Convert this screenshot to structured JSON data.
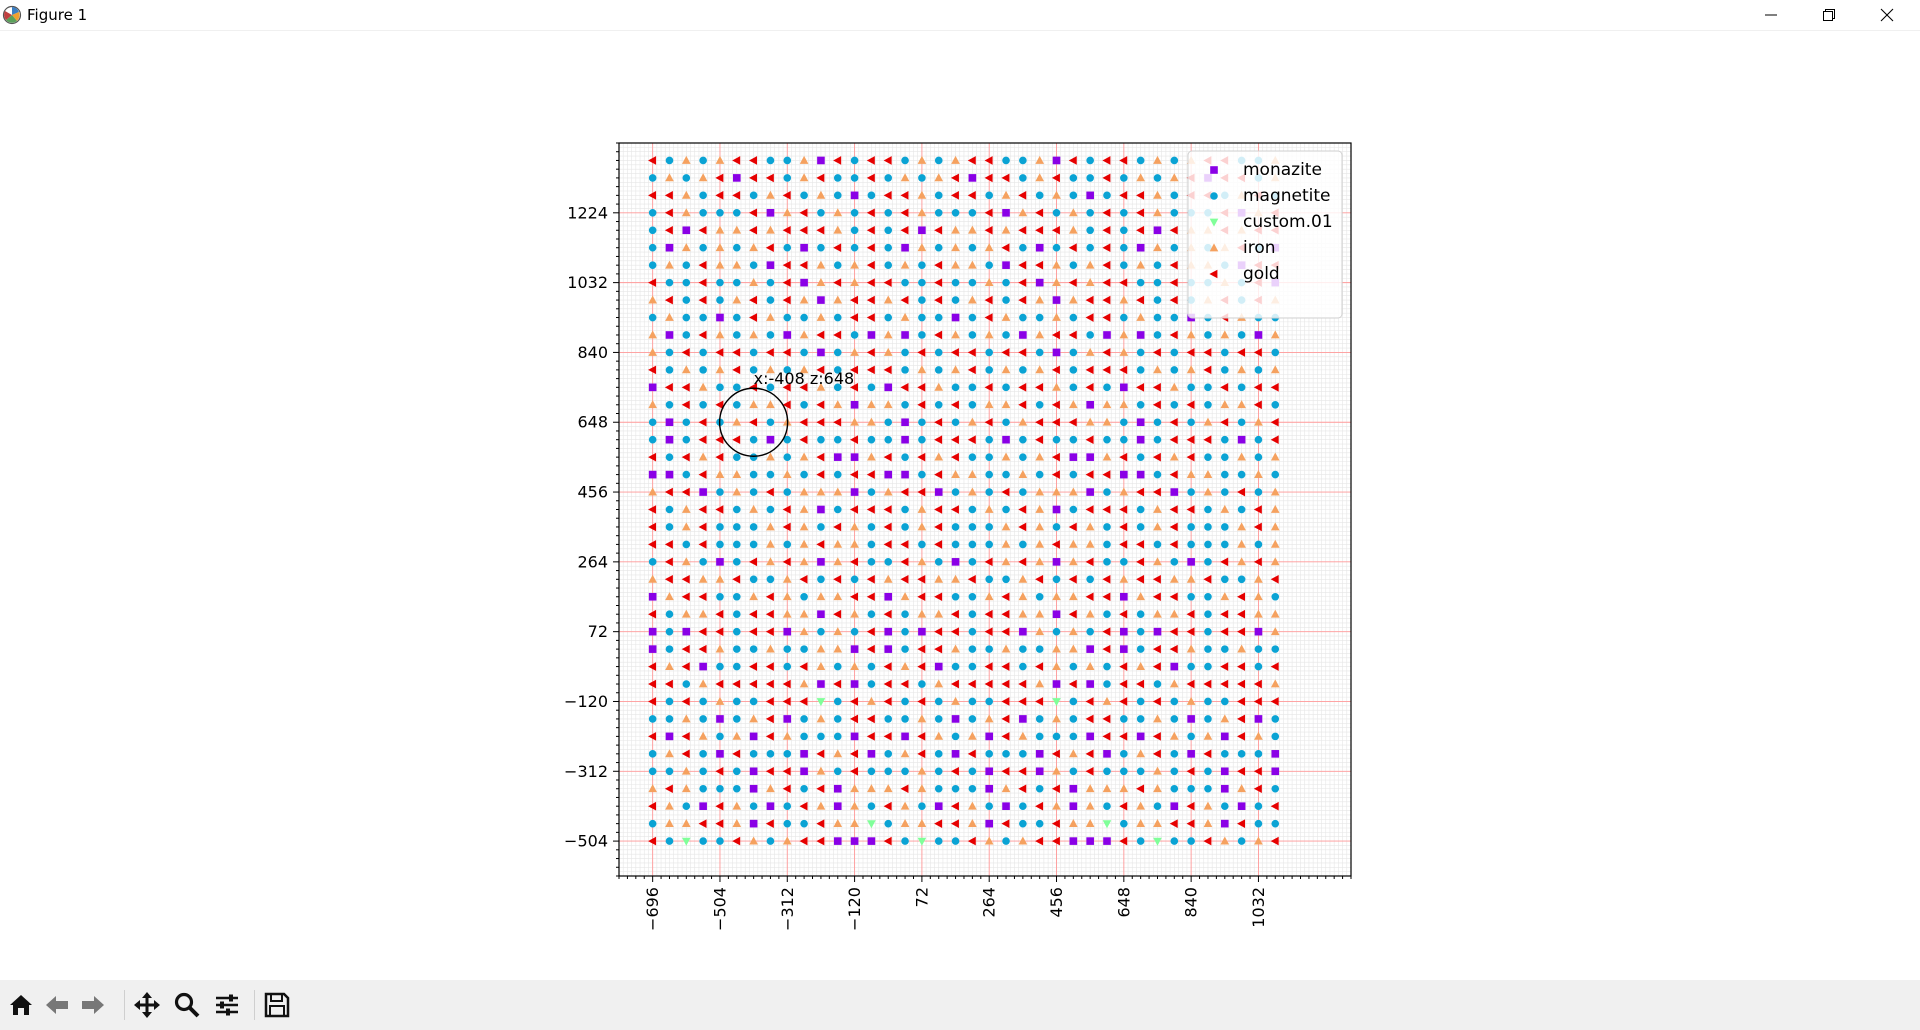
{
  "window": {
    "title": "Figure 1",
    "icons": [
      "matplotlib-icon",
      "minimize-icon",
      "maximize-icon",
      "close-icon"
    ]
  },
  "toolbar": {
    "buttons": [
      "home",
      "back",
      "forward",
      "pan",
      "zoom",
      "configure-subplots",
      "save"
    ]
  },
  "chart_data": {
    "type": "scatter",
    "title": "",
    "xlabel": "",
    "ylabel": "",
    "xlim": [
      -792,
      1296
    ],
    "ylim": [
      -600,
      1416
    ],
    "xticks": [
      -696,
      -504,
      -312,
      -120,
      72,
      264,
      456,
      648,
      840,
      1032
    ],
    "yticks": [
      -504,
      -312,
      -120,
      72,
      264,
      456,
      648,
      840,
      1032,
      1224
    ],
    "x_tick_labels": [
      "−696",
      "−504",
      "−312",
      "−120",
      "72",
      "264",
      "456",
      "648",
      "840",
      "1032"
    ],
    "y_tick_labels": [
      "−504",
      "−312",
      "−120",
      "72",
      "264",
      "456",
      "648",
      "840",
      "1032",
      "1224"
    ],
    "grid": true,
    "grid_major_color": "#ff9999",
    "legend_position": "top-right",
    "series": [
      {
        "name": "monazite",
        "marker": "square",
        "color": "#8a00e6"
      },
      {
        "name": "magnetite",
        "marker": "circle",
        "color": "#0aa3d4"
      },
      {
        "name": "custom.01",
        "marker": "triangle-down",
        "color": "#80ff99"
      },
      {
        "name": "iron",
        "marker": "triangle-up",
        "color": "#f5a15f"
      },
      {
        "name": "gold",
        "marker": "triangle-left",
        "color": "#e60000"
      }
    ],
    "grid_points": {
      "x_start": -696,
      "x_step": 48,
      "x_count": 38,
      "y_start": -504,
      "y_step": 48,
      "y_count": 40,
      "pattern": [
        "41211431344000",
        "33213344304114",
        "14303143104310",
        "10341403334311",
        "31410440314111",
        "01341041110434",
        "11044043130431",
        "40131441131013",
        "31144421434141",
        "41344444304014",
        "31434011441431",
        "13304014431131",
        "44031314010441",
        "34144330431413",
        "03441134313344",
        "41434433411341",
        "43034114310143",
        "11313433144141",
        "34111343143141",
        "44134413143014",
        "33013440131413",
        "13141440014331",
        "41131340034143",
        "01444101411411",
        "33101413413444",
        "14303314141334",
        "41443141044311",
        "13413134144413",
        "31414414410134",
        "41030143131034",
        "11314413110143",
        "34143034434141",
        "14113140343441",
        "41314331044313",
        "14141031313410",
        "34443141404334",
        "11403413141431",
        "43144134131014",
        "14131340441341",
        "30414413134411"
      ]
    },
    "annotation": {
      "text": "x:-408 z:648",
      "x": -408,
      "y": 648
    }
  }
}
